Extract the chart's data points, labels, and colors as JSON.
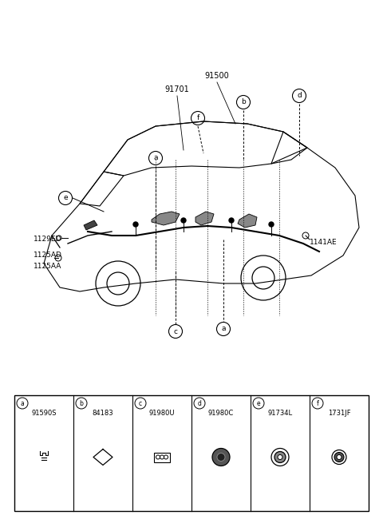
{
  "bg_color": "#ffffff",
  "fig_width": 4.8,
  "fig_height": 6.55,
  "dpi": 100,
  "car_label_91500": "91500",
  "car_label_91701": "91701",
  "car_label_1129ED": "1129ED",
  "car_label_1125AD": "1125AD",
  "car_label_1125AA": "1125AA",
  "car_label_1141AE": "1141AE",
  "part_labels": [
    "a",
    "b",
    "c",
    "d",
    "e",
    "f"
  ],
  "part_numbers": [
    "91590S",
    "84183",
    "91980U",
    "91980C",
    "91734L",
    "1731JF"
  ],
  "line_color": "#000000",
  "text_color": "#000000",
  "box_color": "#000000"
}
